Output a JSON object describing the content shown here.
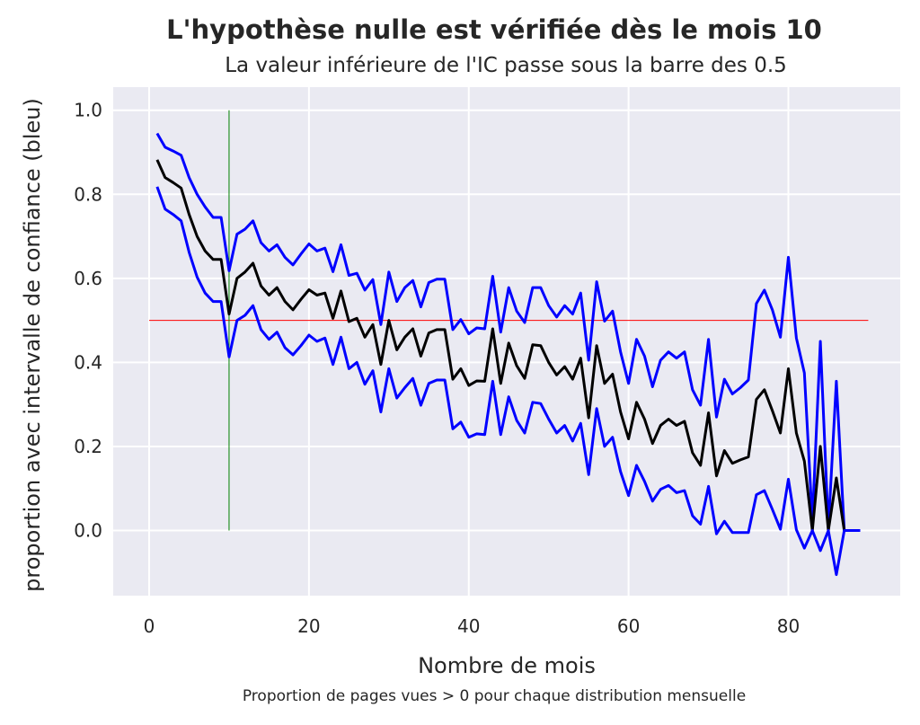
{
  "chart_data": {
    "type": "line",
    "title": "L'hypothèse nulle est vérifiée dès le mois 10",
    "subtitle": "La valeur inférieure de l'IC passe sous la barre des 0.5",
    "xlabel": "Nombre de mois",
    "ylabel": "proportion avec intervalle de confiance (bleu)",
    "caption": "Proportion de pages vues > 0 pour chaque distribution mensuelle",
    "xlim": [
      -4.5,
      94
    ],
    "ylim": [
      -0.155,
      1.055
    ],
    "xticks": [
      0,
      20,
      40,
      60,
      80
    ],
    "yticks": [
      0.0,
      0.2,
      0.4,
      0.6,
      0.8,
      1.0
    ],
    "grid": true,
    "background": "#eaeaf2",
    "x": [
      1,
      2,
      3,
      4,
      5,
      6,
      7,
      8,
      9,
      10,
      11,
      12,
      13,
      14,
      15,
      16,
      17,
      18,
      19,
      20,
      21,
      22,
      23,
      24,
      25,
      26,
      27,
      28,
      29,
      30,
      31,
      32,
      33,
      34,
      35,
      36,
      37,
      38,
      39,
      40,
      41,
      42,
      43,
      44,
      45,
      46,
      47,
      48,
      49,
      50,
      51,
      52,
      53,
      54,
      55,
      56,
      57,
      58,
      59,
      60,
      61,
      62,
      63,
      64,
      65,
      66,
      67,
      68,
      69,
      70,
      71,
      72,
      73,
      74,
      75,
      76,
      77,
      78,
      79,
      80,
      81,
      82,
      83,
      84,
      85,
      86,
      87,
      88,
      89
    ],
    "series": [
      {
        "color": "#0000ff",
        "values": [
          0.945,
          0.912,
          0.903,
          0.893,
          0.84,
          0.8,
          0.77,
          0.745,
          0.745,
          0.618,
          0.705,
          0.717,
          0.737,
          0.685,
          0.665,
          0.68,
          0.65,
          0.632,
          0.658,
          0.682,
          0.665,
          0.672,
          0.616,
          0.68,
          0.607,
          0.612,
          0.572,
          0.597,
          0.49,
          0.615,
          0.545,
          0.578,
          0.595,
          0.532,
          0.59,
          0.598,
          0.598,
          0.478,
          0.502,
          0.468,
          0.482,
          0.48,
          0.605,
          0.472,
          0.578,
          0.522,
          0.495,
          0.578,
          0.578,
          0.535,
          0.508,
          0.535,
          0.515,
          0.565,
          0.405,
          0.592,
          0.498,
          0.522,
          0.425,
          0.35,
          0.455,
          0.415,
          0.342,
          0.405,
          0.425,
          0.41,
          0.425,
          0.335,
          0.298,
          0.455,
          0.27,
          0.36,
          0.325,
          0.34,
          0.358,
          0.54,
          0.572,
          0.525,
          0.46,
          0.65,
          0.458,
          0.375,
          0.022,
          0.45,
          0.005,
          0.355,
          0.0,
          0.0,
          0.0
        ]
      },
      {
        "color": "#000000",
        "values": [
          0.882,
          0.84,
          0.828,
          0.815,
          0.752,
          0.7,
          0.665,
          0.645,
          0.645,
          0.515,
          0.6,
          0.615,
          0.636,
          0.582,
          0.56,
          0.578,
          0.545,
          0.525,
          0.55,
          0.573,
          0.56,
          0.565,
          0.505,
          0.57,
          0.497,
          0.505,
          0.46,
          0.49,
          0.395,
          0.5,
          0.43,
          0.46,
          0.48,
          0.415,
          0.47,
          0.478,
          0.478,
          0.36,
          0.385,
          0.345,
          0.356,
          0.355,
          0.48,
          0.35,
          0.446,
          0.392,
          0.362,
          0.442,
          0.44,
          0.4,
          0.37,
          0.39,
          0.36,
          0.41,
          0.268,
          0.44,
          0.35,
          0.372,
          0.282,
          0.218,
          0.305,
          0.265,
          0.207,
          0.25,
          0.265,
          0.25,
          0.26,
          0.185,
          0.155,
          0.28,
          0.13,
          0.19,
          0.16,
          0.168,
          0.175,
          0.312,
          0.335,
          0.285,
          0.232,
          0.385,
          0.232,
          0.165,
          0.0,
          0.2,
          0.0,
          0.125,
          0.0,
          0.0,
          0.0
        ]
      },
      {
        "color": "#0000ff",
        "values": [
          0.818,
          0.765,
          0.752,
          0.737,
          0.662,
          0.603,
          0.565,
          0.545,
          0.545,
          0.413,
          0.5,
          0.512,
          0.535,
          0.478,
          0.455,
          0.472,
          0.435,
          0.418,
          0.44,
          0.465,
          0.45,
          0.458,
          0.395,
          0.46,
          0.385,
          0.4,
          0.348,
          0.38,
          0.282,
          0.385,
          0.315,
          0.34,
          0.362,
          0.298,
          0.35,
          0.358,
          0.358,
          0.242,
          0.258,
          0.222,
          0.23,
          0.228,
          0.355,
          0.228,
          0.318,
          0.262,
          0.232,
          0.305,
          0.302,
          0.265,
          0.232,
          0.25,
          0.213,
          0.255,
          0.133,
          0.29,
          0.2,
          0.222,
          0.14,
          0.083,
          0.155,
          0.117,
          0.07,
          0.098,
          0.107,
          0.09,
          0.095,
          0.035,
          0.015,
          0.105,
          -0.008,
          0.022,
          -0.005,
          -0.005,
          -0.005,
          0.085,
          0.095,
          0.05,
          0.003,
          0.122,
          0.002,
          -0.042,
          -0.0,
          -0.048,
          -0.0,
          -0.105,
          0.0,
          0.0,
          0.0
        ]
      }
    ],
    "reference_lines": [
      {
        "orientation": "horizontal",
        "value": 0.5,
        "from": 0,
        "to": 90,
        "color": "#ff0000"
      },
      {
        "orientation": "vertical",
        "value": 10,
        "from": 0.0,
        "to": 1.0,
        "color": "#008000"
      }
    ]
  }
}
